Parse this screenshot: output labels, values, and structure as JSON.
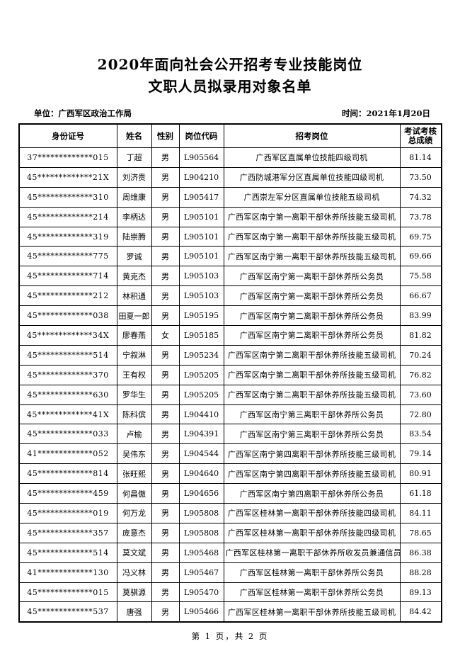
{
  "page": {
    "title_line1": "2020年面向社会公开招考专业技能岗位",
    "title_line2": "文职人员拟录用对象名单",
    "unit_label": "单位：广西军区政治工作局",
    "date_label": "时间：2021年1月20日",
    "footer": "第 1 页，共 2 页"
  },
  "table": {
    "headers": [
      "身份证号",
      "姓名",
      "性别",
      "岗位代码",
      "招考岗位",
      "考试考核\n总成绩"
    ],
    "column_keys": [
      "id",
      "name",
      "gender",
      "code",
      "position",
      "score"
    ],
    "rows": [
      [
        "37*************015",
        "丁超",
        "男",
        "L905564",
        "广西军区直属单位技能四级司机",
        "81.14"
      ],
      [
        "45*************21X",
        "刘济贵",
        "男",
        "L904210",
        "广西防城港军分区直属单位技能四级司机",
        "73.50"
      ],
      [
        "45*************310",
        "周维康",
        "男",
        "L905417",
        "广西崇左军分区直属单位技能五级司机",
        "74.32"
      ],
      [
        "45*************214",
        "李柄达",
        "男",
        "L905101",
        "广西军区南宁第一离职干部休养所技能五级司机",
        "73.78"
      ],
      [
        "45*************319",
        "陆崇腾",
        "男",
        "L905101",
        "广西军区南宁第一离职干部休养所技能五级司机",
        "69.75"
      ],
      [
        "45*************775",
        "罗诚",
        "男",
        "L905101",
        "广西军区南宁第一离职干部休养所技能五级司机",
        "69.66"
      ],
      [
        "45*************714",
        "黄克杰",
        "男",
        "L905103",
        "广西军区南宁第一离职干部休养所公务员",
        "75.58"
      ],
      [
        "45*************212",
        "林积通",
        "男",
        "L905103",
        "广西军区南宁第一离职干部休养所公务员",
        "66.67"
      ],
      [
        "45*************038",
        "田夏一郎",
        "男",
        "L905195",
        "广西军区南宁第二离职干部休养所公务员",
        "83.99"
      ],
      [
        "45*************34X",
        "廖春燕",
        "女",
        "L905185",
        "广西军区南宁第二离职干部休养所公务员",
        "81.82"
      ],
      [
        "45*************514",
        "宁叙淋",
        "男",
        "L905234",
        "广西军区南宁第二离职干部休养所技能五级司机",
        "70.24"
      ],
      [
        "45*************370",
        "王有权",
        "男",
        "L905205",
        "广西军区南宁第二离职干部休养所技能五级司机",
        "76.82"
      ],
      [
        "45*************630",
        "罗华生",
        "男",
        "L905205",
        "广西军区南宁第二离职干部休养所技能五级司机",
        "73.60"
      ],
      [
        "45*************41X",
        "陈科傧",
        "男",
        "L904410",
        "广西军区南宁第三离职干部休养所公务员",
        "72.80"
      ],
      [
        "45*************033",
        "卢榆",
        "男",
        "L904391",
        "广西军区南宁第三离职干部休养所公务员",
        "83.54"
      ],
      [
        "41*************052",
        "吴伟东",
        "男",
        "L904544",
        "广西军区南宁第四离职干部休养所技能三级司机",
        "79.14"
      ],
      [
        "45*************814",
        "张旺熙",
        "男",
        "L904640",
        "广西军区南宁第四离职干部休养所技能五级司机",
        "80.91"
      ],
      [
        "45*************459",
        "何昌傲",
        "男",
        "L904656",
        "广西军区南宁第四离职干部休养所公务员",
        "61.18"
      ],
      [
        "45*************019",
        "何万龙",
        "男",
        "L905808",
        "广西军区桂林第一离职干部休养所技能四级司机",
        "84.11"
      ],
      [
        "45*************357",
        "庞意杰",
        "男",
        "L905808",
        "广西军区桂林第一离职干部休养所技能四级司机",
        "78.65"
      ],
      [
        "45*************514",
        "莫文斌",
        "男",
        "L905468",
        "广西军区桂林第一离职干部休养所收发员兼通信员",
        "86.38"
      ],
      [
        "41*************130",
        "冯义林",
        "男",
        "L905467",
        "广西军区桂林第一离职干部休养所公务员",
        "88.28"
      ],
      [
        "45*************015",
        "莫骐源",
        "男",
        "L905470",
        "广西军区桂林第一离职干部休养所公务员",
        "89.13"
      ],
      [
        "45*************537",
        "唐强",
        "男",
        "L905466",
        "广西军区桂林第一离职干部休养所技能五级司机",
        "84.42"
      ]
    ]
  }
}
